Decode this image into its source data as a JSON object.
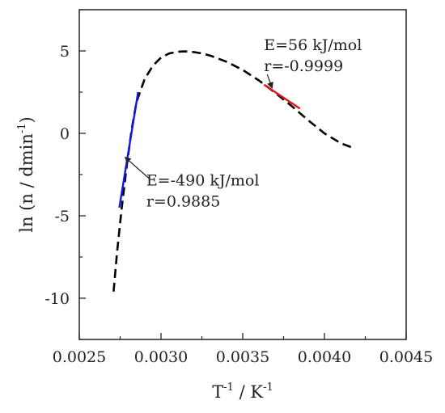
{
  "chart_data": {
    "type": "line",
    "title": "",
    "xlabel": {
      "base": "T",
      "sup1": "-1",
      "mid": " / K",
      "sup2": "-1"
    },
    "ylabel": {
      "base": "ln (n / dmin",
      "sup": "-1",
      "end": ")"
    },
    "xlim": [
      0.0025,
      0.0045
    ],
    "ylim": [
      -12.5,
      7.5
    ],
    "xticks": [
      0.0025,
      0.003,
      0.0035,
      0.004,
      0.0045
    ],
    "xtick_labels": [
      "0.0025",
      "0.0030",
      "0.0035",
      "0.0040",
      "0.0045"
    ],
    "yticks": [
      -10,
      -5,
      0,
      5
    ],
    "ytick_labels": [
      "-10",
      "-5",
      "0",
      "5"
    ],
    "grid": false,
    "series": [
      {
        "style": "dashed",
        "color": "#000000",
        "x": [
          0.00271,
          0.00273,
          0.00276,
          0.00279,
          0.00282,
          0.00285,
          0.0029,
          0.00295,
          0.003,
          0.00305,
          0.0031,
          0.00315,
          0.0032,
          0.00325,
          0.0033,
          0.0034,
          0.0035,
          0.0036,
          0.0037,
          0.0038,
          0.0039,
          0.004,
          0.0041,
          0.00418
        ],
        "y": [
          -9.6,
          -7.3,
          -4.5,
          -2.0,
          0.2,
          1.9,
          3.3,
          4.1,
          4.6,
          4.85,
          4.95,
          4.97,
          4.93,
          4.85,
          4.72,
          4.35,
          3.85,
          3.2,
          2.45,
          1.65,
          0.8,
          0.0,
          -0.6,
          -0.9
        ]
      },
      {
        "style": "solid",
        "color": "#1515e6",
        "x": [
          0.002745,
          0.00286
        ],
        "y": [
          -4.5,
          2.5
        ]
      },
      {
        "style": "solid",
        "color": "#e01515",
        "x": [
          0.00363,
          0.00385
        ],
        "y": [
          2.95,
          1.5
        ]
      }
    ],
    "annotations": [
      {
        "lines": [
          "E=56 kJ/mol",
          "r=-0.9999"
        ],
        "x": 0.00363,
        "y": 5.05,
        "arrow_to": [
          0.00368,
          2.75
        ]
      },
      {
        "lines": [
          "E=-490 kJ/mol",
          "r=0.9885"
        ],
        "x": 0.00291,
        "y": -3.15,
        "arrow_to": [
          0.00278,
          -1.45
        ]
      }
    ]
  }
}
